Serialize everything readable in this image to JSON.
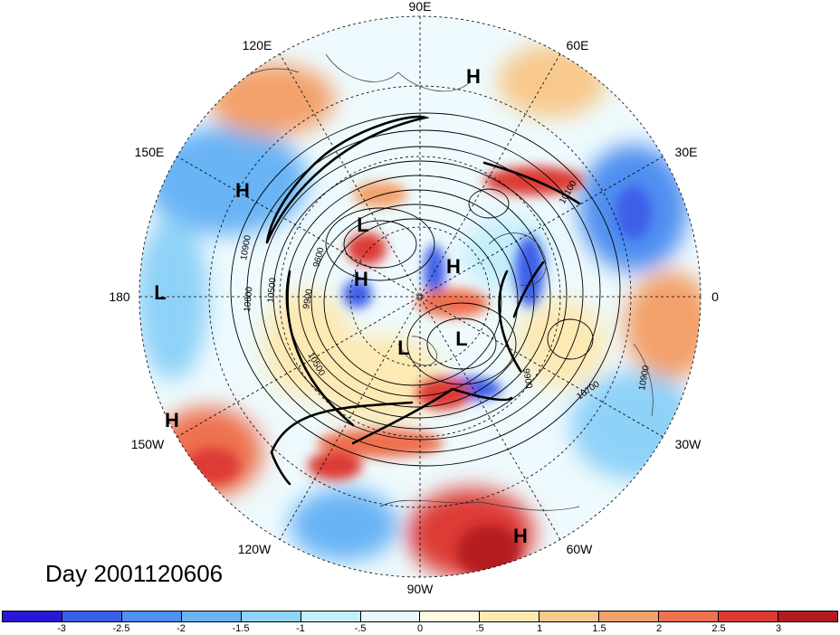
{
  "title": "Day 2001120606",
  "longitude_labels": {
    "lon_90e": "90E",
    "lon_60e": "60E",
    "lon_30e": "30E",
    "lon_0": "0",
    "lon_30w": "30W",
    "lon_60w": "60W",
    "lon_90w": "90W",
    "lon_120w": "120W",
    "lon_150w": "150W",
    "lon_180": "180",
    "lon_150e": "150E",
    "lon_120e": "120E"
  },
  "pressure_centers": {
    "h1": "H",
    "h2": "H",
    "h3": "H",
    "h4": "H",
    "h5": "H",
    "h6": "H",
    "l1": "L",
    "l2": "L",
    "l3": "L",
    "l4": "L"
  },
  "contour_labels": {
    "c1": "9600",
    "c2": "9900",
    "c3": "10500",
    "c4": "10800",
    "c5": "10900",
    "c6": "10500",
    "c7": "10700",
    "c8": "10900",
    "c9": "10100",
    "c10": "9900"
  },
  "colorbar": {
    "colors": [
      "#2a16d6",
      "#3c5fe8",
      "#4f8ff0",
      "#69b4f5",
      "#8fd2f8",
      "#c4eefc",
      "#e8f9fd",
      "#fffbe0",
      "#fce9b3",
      "#f8c98c",
      "#f3a16b",
      "#ee7150",
      "#dd3a35",
      "#b51a22"
    ],
    "tick_labels": [
      "-3",
      "-2.5",
      "-2",
      "-1.5",
      "-1",
      "-.5",
      "0",
      ".5",
      "1",
      "1.5",
      "2",
      "2.5",
      "3"
    ]
  }
}
